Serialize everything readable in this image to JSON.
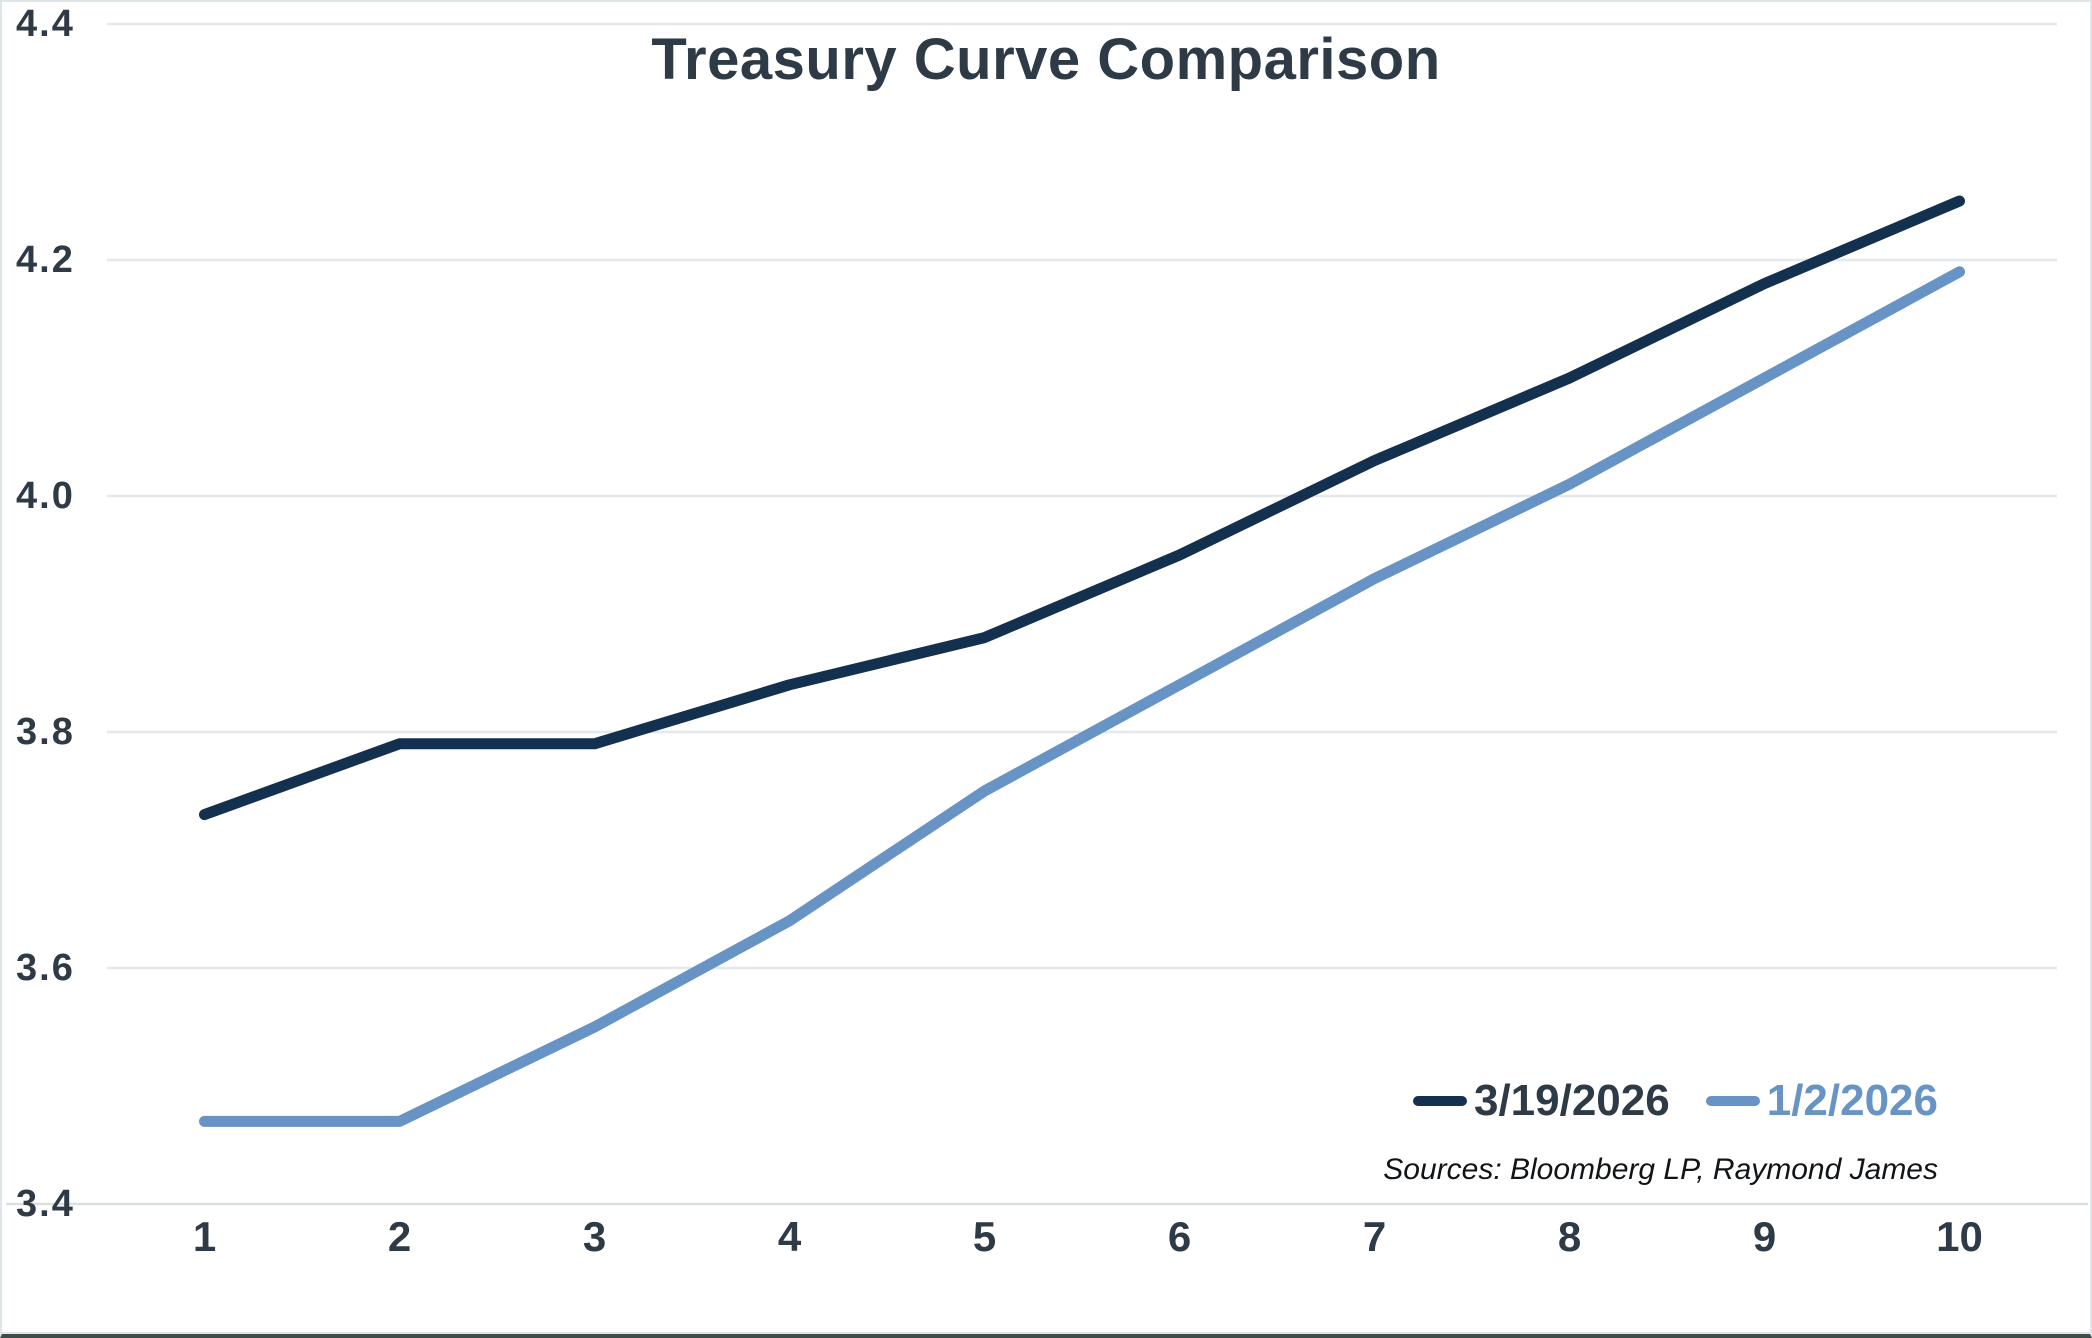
{
  "title": "Treasury Curve Comparison",
  "source_note": "Sources: Bloomberg LP, Raymond James",
  "colors": {
    "text": "#2e3a45",
    "gridline": "#e3e9ec",
    "axis_line": "#d8e0e4",
    "background": "#ffffff",
    "border": "#dfe6e9",
    "border_bottom": "#3f4d49",
    "series_dark": "#13304f",
    "series_light": "#6794c4"
  },
  "chart_data": {
    "type": "line",
    "title": "Treasury Curve Comparison",
    "xlabel": "",
    "ylabel": "",
    "categories": [
      1,
      2,
      3,
      4,
      5,
      6,
      7,
      8,
      9,
      10
    ],
    "series": [
      {
        "name": "3/19/2026",
        "color": "#13304f",
        "legend_text_color": "#2e3a45",
        "values": [
          3.73,
          3.79,
          3.79,
          3.84,
          3.88,
          3.95,
          4.03,
          4.1,
          4.18,
          4.25
        ]
      },
      {
        "name": "1/2/2026",
        "color": "#6794c4",
        "legend_text_color": "#6794c4",
        "values": [
          3.47,
          3.47,
          3.55,
          3.64,
          3.75,
          3.84,
          3.93,
          4.01,
          4.1,
          4.19
        ]
      }
    ],
    "ylim": [
      3.4,
      4.4
    ],
    "yticks": [
      3.4,
      3.6,
      3.8,
      4.0,
      4.2,
      4.4
    ],
    "ytick_decimals": 1,
    "grid": true,
    "legend_position": "bottom-right",
    "source_note": "Sources: Bloomberg LP, Raymond James"
  }
}
